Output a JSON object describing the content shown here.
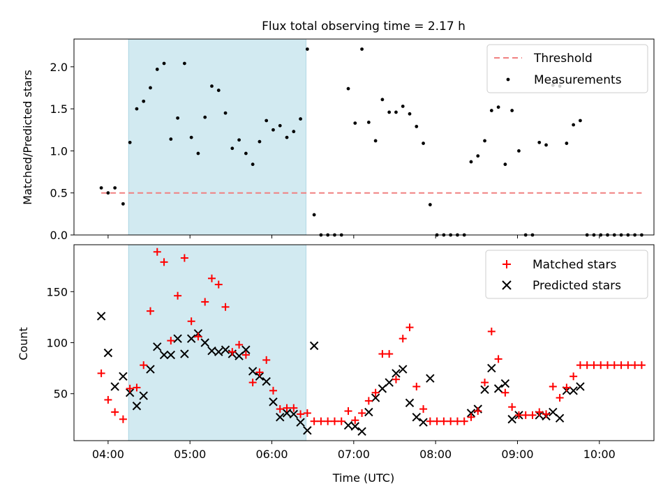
{
  "colors": {
    "threshold": "#f08080",
    "measurements": "#000000",
    "matched": "#ff0000",
    "predicted": "#000000",
    "shade": "#add8e6"
  },
  "chart_data": [
    {
      "type": "scatter",
      "title": "Flux total observing time = 2.17 h",
      "xlabel": "",
      "ylabel": "Matched/Predicted stars",
      "ylim": [
        0,
        2.33
      ],
      "yticks": [
        "0.0",
        "0.5",
        "1.0",
        "1.5",
        "2.0"
      ],
      "shaded_interval": [
        "04:15",
        "06:25"
      ],
      "legend_position": "upper right",
      "threshold": {
        "name": "Threshold",
        "y": 0.5,
        "x_range": [
          "03:55",
          "10:31"
        ]
      },
      "measurements": {
        "name": "Measurements",
        "points": [
          [
            "03:55",
            0.56
          ],
          [
            "04:00",
            0.5
          ],
          [
            "04:05",
            0.56
          ],
          [
            "04:11",
            0.37
          ],
          [
            "04:16",
            1.1
          ],
          [
            "04:21",
            1.5
          ],
          [
            "04:26",
            1.59
          ],
          [
            "04:31",
            1.75
          ],
          [
            "04:36",
            1.97
          ],
          [
            "04:41",
            2.04
          ],
          [
            "04:46",
            1.14
          ],
          [
            "04:51",
            1.39
          ],
          [
            "04:56",
            2.04
          ],
          [
            "05:01",
            1.16
          ],
          [
            "05:06",
            0.97
          ],
          [
            "05:11",
            1.4
          ],
          [
            "05:16",
            1.77
          ],
          [
            "05:21",
            1.72
          ],
          [
            "05:26",
            1.45
          ],
          [
            "05:31",
            1.03
          ],
          [
            "05:36",
            1.13
          ],
          [
            "05:41",
            0.97
          ],
          [
            "05:46",
            0.84
          ],
          [
            "05:51",
            1.11
          ],
          [
            "05:56",
            1.36
          ],
          [
            "06:01",
            1.25
          ],
          [
            "06:06",
            1.3
          ],
          [
            "06:11",
            1.16
          ],
          [
            "06:16",
            1.23
          ],
          [
            "06:21",
            1.38
          ],
          [
            "06:26",
            2.21
          ],
          [
            "06:31",
            0.24
          ],
          [
            "06:36",
            0.0
          ],
          [
            "06:41",
            0.0
          ],
          [
            "06:46",
            0.0
          ],
          [
            "06:51",
            0.0
          ],
          [
            "06:56",
            1.74
          ],
          [
            "07:01",
            1.33
          ],
          [
            "07:06",
            2.21
          ],
          [
            "07:11",
            1.34
          ],
          [
            "07:16",
            1.12
          ],
          [
            "07:21",
            1.61
          ],
          [
            "07:26",
            1.46
          ],
          [
            "07:31",
            1.46
          ],
          [
            "07:36",
            1.53
          ],
          [
            "07:41",
            1.44
          ],
          [
            "07:46",
            1.29
          ],
          [
            "07:51",
            1.09
          ],
          [
            "07:56",
            0.36
          ],
          [
            "08:01",
            0.0
          ],
          [
            "08:06",
            0.0
          ],
          [
            "08:11",
            0.0
          ],
          [
            "08:16",
            0.0
          ],
          [
            "08:21",
            0.0
          ],
          [
            "08:26",
            0.87
          ],
          [
            "08:31",
            0.94
          ],
          [
            "08:36",
            1.12
          ],
          [
            "08:41",
            1.48
          ],
          [
            "08:46",
            1.52
          ],
          [
            "08:51",
            0.84
          ],
          [
            "08:56",
            1.48
          ],
          [
            "09:01",
            1.0
          ],
          [
            "09:06",
            0.0
          ],
          [
            "09:11",
            0.0
          ],
          [
            "09:16",
            1.1
          ],
          [
            "09:21",
            1.07
          ],
          [
            "09:26",
            1.78
          ],
          [
            "09:31",
            1.77
          ],
          [
            "09:36",
            1.09
          ],
          [
            "09:41",
            1.31
          ],
          [
            "09:46",
            1.36
          ],
          [
            "09:51",
            0.0
          ],
          [
            "09:56",
            0.0
          ],
          [
            "10:01",
            0.0
          ],
          [
            "10:06",
            0.0
          ],
          [
            "10:11",
            0.0
          ],
          [
            "10:16",
            0.0
          ],
          [
            "10:21",
            0.0
          ],
          [
            "10:26",
            0.0
          ],
          [
            "10:31",
            0.0
          ]
        ]
      }
    },
    {
      "type": "scatter",
      "title": "",
      "xlabel": "Time (UTC)",
      "ylabel": "Count",
      "ylim": [
        4,
        196
      ],
      "yticks": [
        "50",
        "100",
        "150"
      ],
      "xlim": [
        "03:35",
        "10:40"
      ],
      "xticks": [
        "04:00",
        "05:00",
        "06:00",
        "07:00",
        "08:00",
        "09:00",
        "10:00"
      ],
      "shaded_interval": [
        "04:15",
        "06:25"
      ],
      "legend_position": "upper right",
      "series": [
        {
          "name": "Matched stars",
          "marker": "+",
          "points": [
            [
              "03:55",
              70
            ],
            [
              "04:00",
              44
            ],
            [
              "04:05",
              32
            ],
            [
              "04:11",
              25
            ],
            [
              "04:16",
              55
            ],
            [
              "04:21",
              56
            ],
            [
              "04:26",
              78
            ],
            [
              "04:31",
              131
            ],
            [
              "04:36",
              189
            ],
            [
              "04:41",
              179
            ],
            [
              "04:46",
              102
            ],
            [
              "04:51",
              146
            ],
            [
              "04:56",
              183
            ],
            [
              "05:01",
              121
            ],
            [
              "05:06",
              106
            ],
            [
              "05:11",
              140
            ],
            [
              "05:16",
              163
            ],
            [
              "05:21",
              157
            ],
            [
              "05:26",
              135
            ],
            [
              "05:31",
              91
            ],
            [
              "05:36",
              98
            ],
            [
              "05:41",
              88
            ],
            [
              "05:46",
              61
            ],
            [
              "05:51",
              71
            ],
            [
              "05:56",
              83
            ],
            [
              "06:01",
              53
            ],
            [
              "06:06",
              35
            ],
            [
              "06:11",
              36
            ],
            [
              "06:16",
              36
            ],
            [
              "06:21",
              30
            ],
            [
              "06:26",
              31
            ],
            [
              "06:31",
              23
            ],
            [
              "06:36",
              23
            ],
            [
              "06:41",
              23
            ],
            [
              "06:46",
              23
            ],
            [
              "06:51",
              23
            ],
            [
              "06:56",
              33
            ],
            [
              "07:01",
              24
            ],
            [
              "07:06",
              31
            ],
            [
              "07:11",
              43
            ],
            [
              "07:16",
              51
            ],
            [
              "07:21",
              89
            ],
            [
              "07:26",
              89
            ],
            [
              "07:31",
              64
            ],
            [
              "07:36",
              104
            ],
            [
              "07:41",
              115
            ],
            [
              "07:46",
              57
            ],
            [
              "07:51",
              35
            ],
            [
              "07:56",
              23
            ],
            [
              "08:01",
              23
            ],
            [
              "08:06",
              23
            ],
            [
              "08:11",
              23
            ],
            [
              "08:16",
              23
            ],
            [
              "08:21",
              23
            ],
            [
              "08:26",
              27
            ],
            [
              "08:31",
              33
            ],
            [
              "08:36",
              61
            ],
            [
              "08:41",
              111
            ],
            [
              "08:46",
              84
            ],
            [
              "08:51",
              51
            ],
            [
              "08:56",
              37
            ],
            [
              "09:01",
              29
            ],
            [
              "09:06",
              29
            ],
            [
              "09:11",
              29
            ],
            [
              "09:16",
              32
            ],
            [
              "09:21",
              30
            ],
            [
              "09:26",
              57
            ],
            [
              "09:31",
              46
            ],
            [
              "09:36",
              56
            ],
            [
              "09:41",
              67
            ],
            [
              "09:46",
              78
            ],
            [
              "09:51",
              78
            ],
            [
              "09:56",
              78
            ],
            [
              "10:01",
              78
            ],
            [
              "10:06",
              78
            ],
            [
              "10:11",
              78
            ],
            [
              "10:16",
              78
            ],
            [
              "10:21",
              78
            ],
            [
              "10:26",
              78
            ],
            [
              "10:31",
              78
            ]
          ]
        },
        {
          "name": "Predicted stars",
          "marker": "x",
          "points": [
            [
              "03:55",
              126
            ],
            [
              "04:00",
              90
            ],
            [
              "04:05",
              57
            ],
            [
              "04:11",
              67
            ],
            [
              "04:16",
              51
            ],
            [
              "04:21",
              38
            ],
            [
              "04:26",
              48
            ],
            [
              "04:31",
              74
            ],
            [
              "04:36",
              96
            ],
            [
              "04:41",
              88
            ],
            [
              "04:46",
              88
            ],
            [
              "04:51",
              104
            ],
            [
              "04:56",
              89
            ],
            [
              "05:01",
              104
            ],
            [
              "05:06",
              109
            ],
            [
              "05:11",
              100
            ],
            [
              "05:16",
              92
            ],
            [
              "05:21",
              91
            ],
            [
              "05:26",
              93
            ],
            [
              "05:31",
              89
            ],
            [
              "05:36",
              87
            ],
            [
              "05:41",
              93
            ],
            [
              "05:46",
              72
            ],
            [
              "05:51",
              67
            ],
            [
              "05:56",
              62
            ],
            [
              "06:01",
              42
            ],
            [
              "06:06",
              27
            ],
            [
              "06:11",
              31
            ],
            [
              "06:16",
              30
            ],
            [
              "06:21",
              22
            ],
            [
              "06:26",
              14
            ],
            [
              "06:31",
              97
            ],
            [
              "06:56",
              19
            ],
            [
              "07:01",
              18
            ],
            [
              "07:06",
              13
            ],
            [
              "07:11",
              32
            ],
            [
              "07:16",
              46
            ],
            [
              "07:21",
              55
            ],
            [
              "07:26",
              61
            ],
            [
              "07:31",
              70
            ],
            [
              "07:36",
              74
            ],
            [
              "07:41",
              41
            ],
            [
              "07:46",
              27
            ],
            [
              "07:51",
              22
            ],
            [
              "07:56",
              65
            ],
            [
              "08:26",
              31
            ],
            [
              "08:31",
              35
            ],
            [
              "08:36",
              54
            ],
            [
              "08:41",
              75
            ],
            [
              "08:46",
              55
            ],
            [
              "08:51",
              60
            ],
            [
              "08:56",
              25
            ],
            [
              "09:01",
              29
            ],
            [
              "09:16",
              29
            ],
            [
              "09:21",
              28
            ],
            [
              "09:26",
              32
            ],
            [
              "09:31",
              26
            ],
            [
              "09:36",
              53
            ],
            [
              "09:41",
              53
            ],
            [
              "09:46",
              57
            ]
          ]
        }
      ]
    }
  ]
}
